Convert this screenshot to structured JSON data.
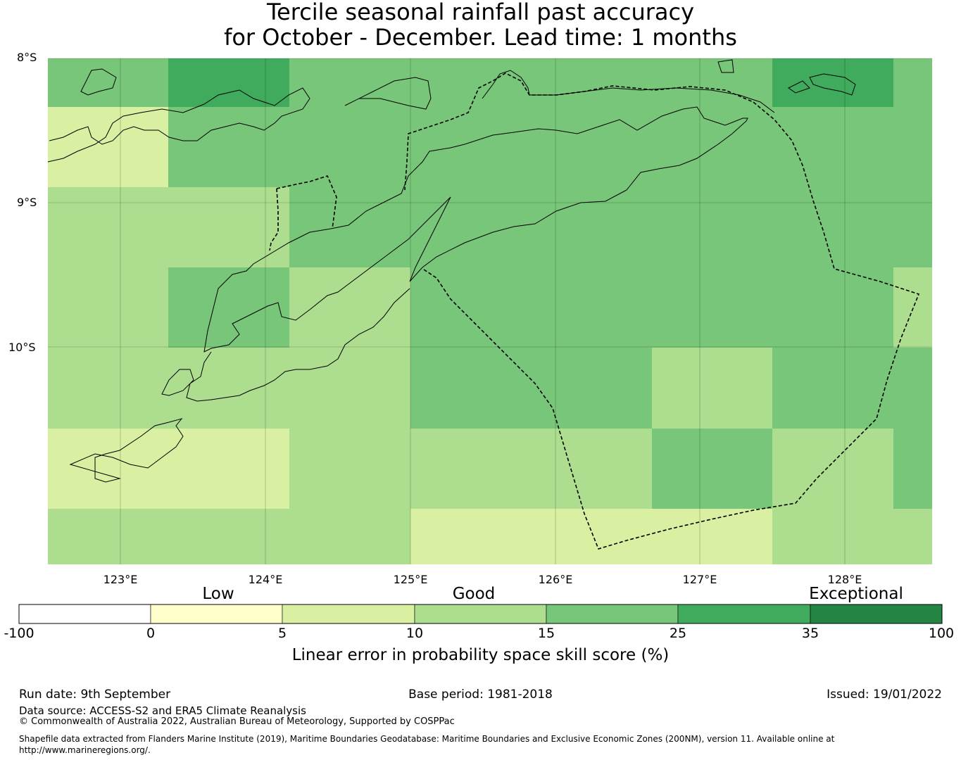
{
  "title": {
    "line1": "Tercile seasonal rainfall past accuracy",
    "line2": "for October - December. Lead time: 1 months"
  },
  "map": {
    "lat_labels": [
      "8°S",
      "9°S",
      "10°S"
    ],
    "lon_labels": [
      "123°E",
      "124°E",
      "125°E",
      "126°E",
      "127°E",
      "128°E"
    ],
    "coastline_color": "#000000",
    "boundary_style": "dashed"
  },
  "skill_grid": {
    "description_rows_north_to_south": [
      [
        15,
        25,
        15,
        15,
        15,
        15,
        25,
        15
      ],
      [
        5,
        15,
        15,
        15,
        15,
        15,
        15,
        15
      ],
      [
        10,
        10,
        15,
        15,
        15,
        15,
        15,
        15
      ],
      [
        10,
        15,
        10,
        15,
        15,
        15,
        15,
        10
      ],
      [
        10,
        10,
        10,
        15,
        15,
        10,
        15,
        15
      ],
      [
        5,
        5,
        10,
        10,
        10,
        15,
        10,
        15
      ],
      [
        10,
        10,
        10,
        5,
        5,
        5,
        10,
        10
      ]
    ]
  },
  "legend": {
    "categories": [
      "Low",
      "Good",
      "Exceptional"
    ],
    "ticks": [
      "-100",
      "0",
      "5",
      "10",
      "15",
      "25",
      "35",
      "100"
    ],
    "colors": [
      "#ffffff",
      "#ffffcc",
      "#d9f0a3",
      "#addd8e",
      "#78c679",
      "#41ab5d",
      "#238443"
    ],
    "label": "Linear error in probability space skill score (%)"
  },
  "footer": {
    "run_date": "Run date: 9th September",
    "base_period": "Base period: 1981-2018",
    "issued": "Issued: 19/01/2022",
    "data_source": "Data source: ACCESS-S2 and ERA5 Climate Reanalysis",
    "copyright": "© Commonwealth of Australia 2022, Australian Bureau of Meteorology, Supported by COSPPac",
    "shapefile": "Shapefile data extracted from Flanders Marine Institute (2019), Maritime Boundaries Geodatabase: Maritime Boundaries and Exclusive Economic Zones (200NM), version 11. Available online at http://www.marineregions.org/."
  }
}
